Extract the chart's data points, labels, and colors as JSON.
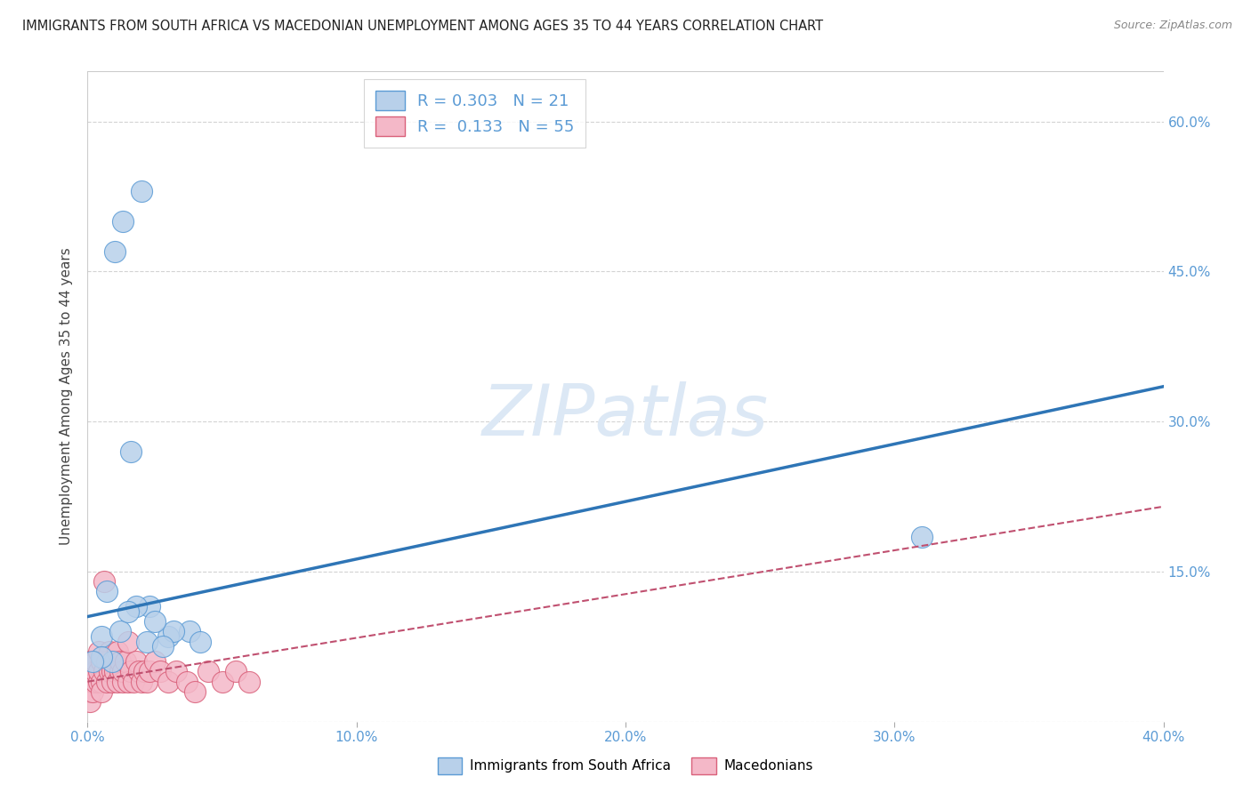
{
  "title": "IMMIGRANTS FROM SOUTH AFRICA VS MACEDONIAN UNEMPLOYMENT AMONG AGES 35 TO 44 YEARS CORRELATION CHART",
  "source": "Source: ZipAtlas.com",
  "ylabel": "Unemployment Among Ages 35 to 44 years",
  "xlim": [
    0.0,
    0.4
  ],
  "ylim": [
    0.0,
    0.65
  ],
  "xticks": [
    0.0,
    0.1,
    0.2,
    0.3,
    0.4
  ],
  "xticklabels": [
    "0.0%",
    "10.0%",
    "20.0%",
    "30.0%",
    "40.0%"
  ],
  "yticks_right": [
    0.15,
    0.3,
    0.45,
    0.6
  ],
  "yticklabels_right": [
    "15.0%",
    "30.0%",
    "45.0%",
    "60.0%"
  ],
  "blue_R": 0.303,
  "blue_N": 21,
  "pink_R": 0.133,
  "pink_N": 55,
  "blue_color": "#b8d0ea",
  "blue_edge": "#5b9bd5",
  "blue_line_color": "#2e75b6",
  "pink_color": "#f4b8c8",
  "pink_edge": "#d9607a",
  "pink_line_color": "#c05070",
  "watermark": "ZIPatlas",
  "watermark_color": "#dce8f5",
  "blue_scatter_x": [
    0.013,
    0.02,
    0.01,
    0.016,
    0.023,
    0.03,
    0.038,
    0.005,
    0.009,
    0.012,
    0.022,
    0.032,
    0.042,
    0.005,
    0.018,
    0.028,
    0.31,
    0.002,
    0.007,
    0.015,
    0.025
  ],
  "blue_scatter_y": [
    0.5,
    0.53,
    0.47,
    0.27,
    0.115,
    0.085,
    0.09,
    0.085,
    0.06,
    0.09,
    0.08,
    0.09,
    0.08,
    0.065,
    0.115,
    0.075,
    0.185,
    0.06,
    0.13,
    0.11,
    0.1
  ],
  "pink_scatter_x": [
    0.001,
    0.001,
    0.001,
    0.001,
    0.001,
    0.002,
    0.002,
    0.002,
    0.002,
    0.003,
    0.003,
    0.003,
    0.004,
    0.004,
    0.004,
    0.005,
    0.005,
    0.005,
    0.006,
    0.006,
    0.007,
    0.007,
    0.008,
    0.008,
    0.009,
    0.009,
    0.01,
    0.01,
    0.011,
    0.011,
    0.012,
    0.012,
    0.013,
    0.013,
    0.014,
    0.015,
    0.015,
    0.016,
    0.017,
    0.018,
    0.019,
    0.02,
    0.021,
    0.022,
    0.023,
    0.025,
    0.027,
    0.03,
    0.033,
    0.037,
    0.04,
    0.045,
    0.05,
    0.055,
    0.06
  ],
  "pink_scatter_y": [
    0.04,
    0.03,
    0.05,
    0.02,
    0.06,
    0.04,
    0.03,
    0.05,
    0.06,
    0.04,
    0.05,
    0.06,
    0.04,
    0.07,
    0.05,
    0.04,
    0.06,
    0.03,
    0.05,
    0.14,
    0.04,
    0.06,
    0.05,
    0.07,
    0.05,
    0.04,
    0.06,
    0.05,
    0.07,
    0.04,
    0.05,
    0.06,
    0.04,
    0.05,
    0.06,
    0.04,
    0.08,
    0.05,
    0.04,
    0.06,
    0.05,
    0.04,
    0.05,
    0.04,
    0.05,
    0.06,
    0.05,
    0.04,
    0.05,
    0.04,
    0.03,
    0.05,
    0.04,
    0.05,
    0.04
  ],
  "blue_line_x0": 0.0,
  "blue_line_y0": 0.105,
  "blue_line_x1": 0.4,
  "blue_line_y1": 0.335,
  "pink_line_x0": 0.0,
  "pink_line_y0": 0.04,
  "pink_line_x1": 0.4,
  "pink_line_y1": 0.215,
  "background_color": "#ffffff",
  "grid_color": "#c8c8c8"
}
